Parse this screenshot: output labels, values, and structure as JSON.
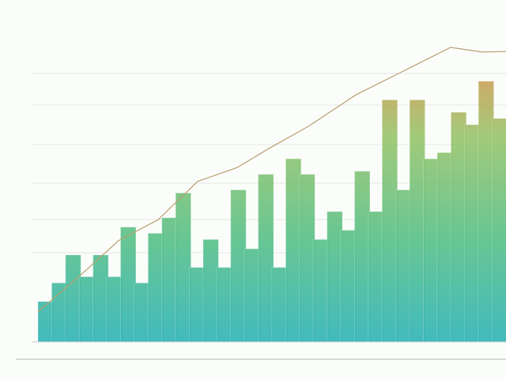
{
  "chart_data": [
    {
      "type": "bar",
      "categories": [
        null,
        null,
        null,
        null,
        null,
        null,
        null,
        null,
        null,
        null,
        null,
        null,
        null,
        null,
        null,
        null,
        null,
        null,
        null,
        null,
        null,
        null,
        null,
        null,
        null,
        null,
        null,
        null,
        null,
        null,
        null,
        null,
        null,
        null
      ],
      "values": [
        13,
        19,
        28,
        21,
        28,
        21,
        37,
        19,
        35,
        40,
        48,
        24,
        33,
        24,
        49,
        30,
        54,
        24,
        59,
        54,
        33,
        42,
        36,
        55,
        42,
        78,
        49,
        78,
        59,
        61,
        74,
        70,
        84,
        72
      ],
      "gradient": [
        "#f2874a",
        "#9cc66f",
        "#5cc28a",
        "#33b5b9"
      ],
      "ylim": [
        0,
        100
      ]
    },
    {
      "type": "line",
      "x": [
        0,
        8.8,
        17.2,
        25.7,
        34.1,
        42.6,
        49.3,
        57.8,
        67.9,
        79.7,
        88.2,
        94.9,
        100
      ],
      "values": [
        9.7,
        21.1,
        32.6,
        39.4,
        51.7,
        56.2,
        62.3,
        69.5,
        79.6,
        88.5,
        94.9,
        93.4,
        93.6
      ],
      "color": "#b8a070",
      "xlim": [
        0,
        100
      ],
      "ylim": [
        0,
        100
      ]
    }
  ]
}
